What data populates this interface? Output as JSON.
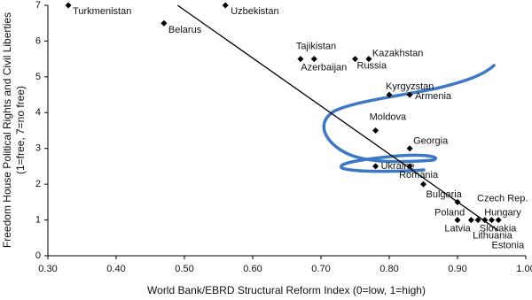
{
  "chart_data": {
    "type": "scatter",
    "xlabel": "World Bank/EBRD Structural Reform Index (0=low, 1=high)",
    "ylabel": [
      "Freedom House Political Rights and Civil Liberties",
      "(1=free, 7=no free)"
    ],
    "labels": [
      "Turkmenistan",
      "Belarus",
      "Uzbekistan",
      "Tajikistan",
      "Azerbaijan",
      "Russia",
      "Kazakhstan",
      "Kyrgyzstan",
      "Armenia",
      "Moldova",
      "Georgia",
      "Ukraine",
      "Romania",
      "Bulgaria",
      "Czech Rep.",
      "Poland",
      "Latvia",
      "Lithuania",
      "Slovakia",
      "Estonia",
      "Hungary"
    ],
    "x": [
      0.33,
      0.47,
      0.56,
      0.67,
      0.69,
      0.75,
      0.77,
      0.8,
      0.83,
      0.78,
      0.83,
      0.78,
      0.83,
      0.85,
      0.9,
      0.9,
      0.92,
      0.93,
      0.94,
      0.95,
      0.96
    ],
    "y": [
      7,
      6.5,
      7,
      5.5,
      5.5,
      5.5,
      5.5,
      4.5,
      4.5,
      3.5,
      3,
      2.5,
      2.5,
      2,
      1.5,
      1,
      1,
      1,
      1,
      1,
      1
    ],
    "color": "#000000",
    "trendline": {
      "x": [
        0.49,
        0.96
      ],
      "y": [
        7,
        0.7
      ]
    },
    "xlim": [
      0.3,
      1.0
    ],
    "xticks": [
      {
        "value": 0.3,
        "label": "0.30"
      },
      {
        "value": 0.4,
        "label": "0.40"
      },
      {
        "value": 0.5,
        "label": "0.50"
      },
      {
        "value": 0.6,
        "label": "0.60"
      },
      {
        "value": 0.7,
        "label": "0.70"
      },
      {
        "value": 0.8,
        "label": "0.80"
      },
      {
        "value": 0.9,
        "label": "0.90"
      },
      {
        "value": 1.0,
        "label": "1.00"
      }
    ],
    "ylim": [
      0,
      7
    ],
    "yticks": [
      0,
      1,
      2,
      3,
      4,
      5,
      6,
      7
    ]
  }
}
